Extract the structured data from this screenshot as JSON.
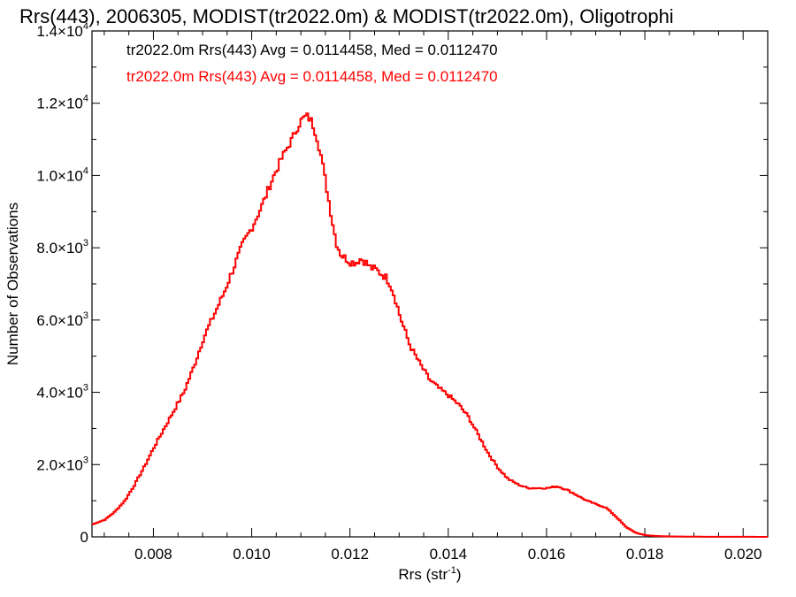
{
  "chart_data": {
    "type": "line",
    "step": true,
    "title": "Rrs(443), 2006305, MODIST(tr2022.0m) & MODIST(tr2022.0m), Oligotrophi",
    "xlabel": "Rrs (str",
    "xlabel_sup": "-1",
    "xlabel_close": ")",
    "ylabel": "Number of Observations",
    "xlim": [
      0.00675,
      0.0205
    ],
    "ylim": [
      0,
      14000
    ],
    "xticks": [
      {
        "value": 0.008,
        "label": "0.008"
      },
      {
        "value": 0.01,
        "label": "0.010"
      },
      {
        "value": 0.012,
        "label": "0.012"
      },
      {
        "value": 0.014,
        "label": "0.014"
      },
      {
        "value": 0.016,
        "label": "0.016"
      },
      {
        "value": 0.018,
        "label": "0.018"
      },
      {
        "value": 0.02,
        "label": "0.020"
      }
    ],
    "yticks": [
      {
        "value": 0,
        "mant": "0",
        "exp": ""
      },
      {
        "value": 2000,
        "mant": "2.0×10",
        "exp": "3"
      },
      {
        "value": 4000,
        "mant": "4.0×10",
        "exp": "3"
      },
      {
        "value": 6000,
        "mant": "6.0×10",
        "exp": "3"
      },
      {
        "value": 8000,
        "mant": "8.0×10",
        "exp": "3"
      },
      {
        "value": 10000,
        "mant": "1.0×10",
        "exp": "4"
      },
      {
        "value": 12000,
        "mant": "1.2×10",
        "exp": "4"
      },
      {
        "value": 14000,
        "mant": "1.4×10",
        "exp": "4"
      }
    ],
    "grid": false,
    "annotations": [
      {
        "text": "tr2022.0m Rrs(443) Avg = 0.0114458, Med = 0.0112470",
        "color": "#000000"
      },
      {
        "text": "tr2022.0m Rrs(443) Avg = 0.0114458, Med = 0.0112470",
        "color": "#ff0000"
      }
    ],
    "series": [
      {
        "color": "#ff0000",
        "x": [
          0.00675,
          0.007,
          0.0072,
          0.0074,
          0.0076,
          0.0078,
          0.008,
          0.0082,
          0.0084,
          0.0086,
          0.0088,
          0.009,
          0.0092,
          0.0094,
          0.0096,
          0.0098,
          0.01,
          0.0102,
          0.0104,
          0.0106,
          0.0108,
          0.0109,
          0.011,
          0.0111,
          0.0112,
          0.0113,
          0.0114,
          0.0115,
          0.0116,
          0.0117,
          0.0118,
          0.0119,
          0.012,
          0.0121,
          0.0122,
          0.0123,
          0.0124,
          0.0125,
          0.0126,
          0.0127,
          0.0128,
          0.0129,
          0.013,
          0.0131,
          0.0132,
          0.0134,
          0.0136,
          0.0138,
          0.014,
          0.0142,
          0.0144,
          0.0146,
          0.0148,
          0.015,
          0.0152,
          0.0154,
          0.0156,
          0.0158,
          0.016,
          0.0162,
          0.0164,
          0.0166,
          0.0168,
          0.017,
          0.0172,
          0.0174,
          0.0176,
          0.0178,
          0.018,
          0.0182,
          0.0184,
          0.0186,
          0.0188,
          0.019,
          0.0195,
          0.02,
          0.0205
        ],
        "y": [
          350,
          480,
          700,
          1000,
          1450,
          1950,
          2500,
          3000,
          3500,
          4000,
          4700,
          5500,
          6100,
          6700,
          7400,
          8100,
          8600,
          9200,
          9900,
          10500,
          11000,
          11300,
          11550,
          11650,
          11500,
          11100,
          10500,
          9700,
          8900,
          8150,
          7800,
          7700,
          7600,
          7600,
          7700,
          7600,
          7450,
          7400,
          7300,
          7200,
          7000,
          6600,
          6100,
          5700,
          5300,
          4800,
          4350,
          4100,
          3900,
          3650,
          3300,
          2800,
          2300,
          1900,
          1600,
          1450,
          1350,
          1350,
          1350,
          1400,
          1300,
          1150,
          1000,
          900,
          800,
          550,
          270,
          110,
          45,
          25,
          15,
          10,
          7,
          5,
          3,
          2,
          1
        ]
      }
    ]
  }
}
